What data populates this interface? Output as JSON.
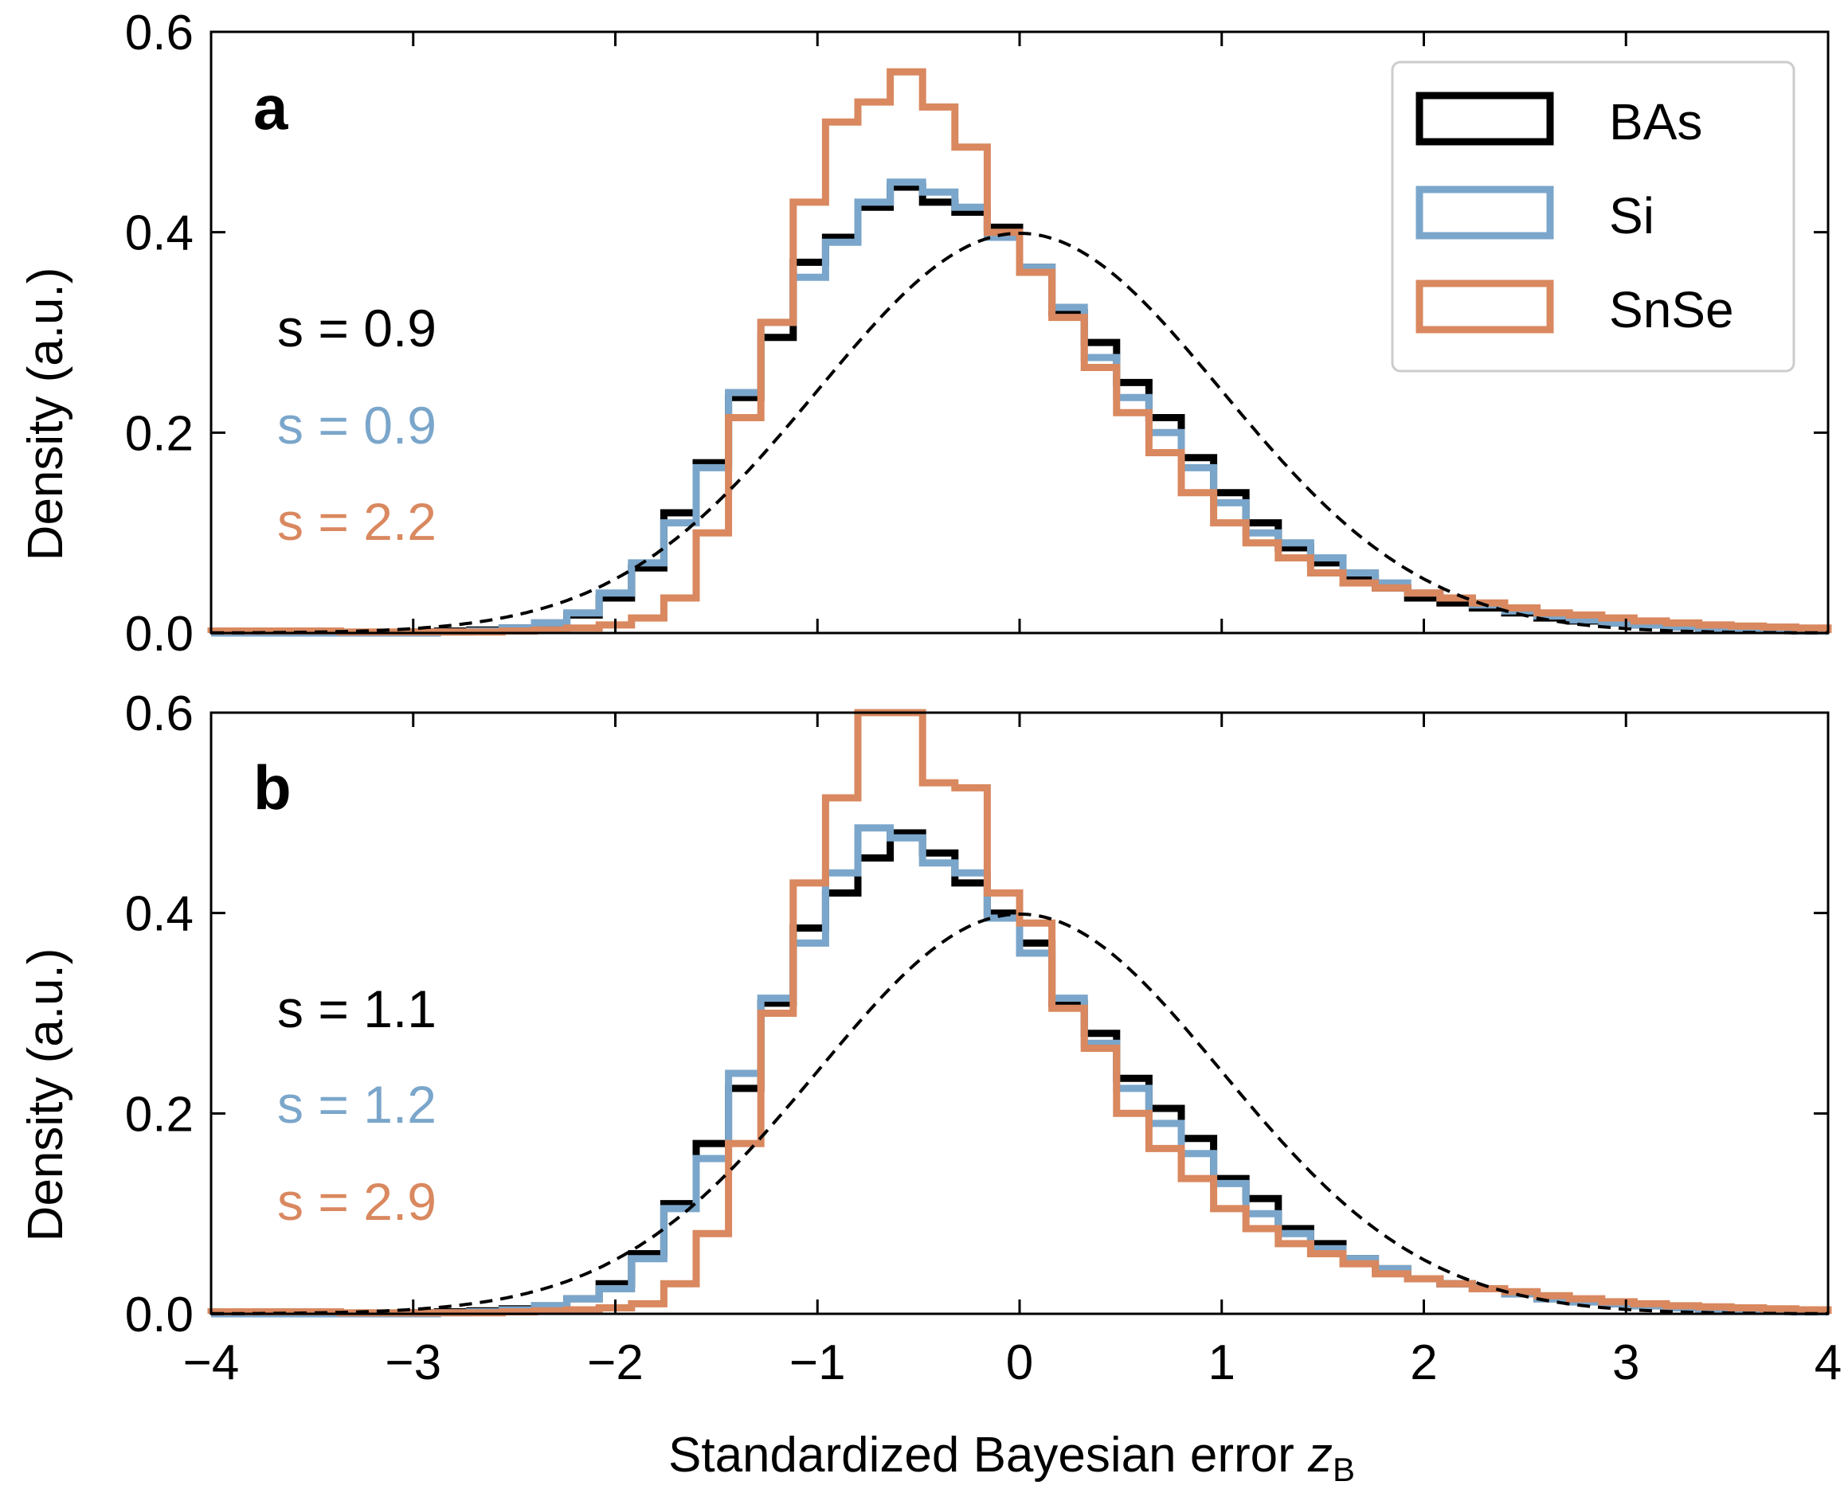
{
  "chart_data": [
    {
      "type": "histogram",
      "panel_label": "a",
      "ylabel": "Density (a.u.)",
      "xlabel": "Standardized Bayesian error z_B",
      "xlim": [
        -4,
        4
      ],
      "ylim": [
        0,
        0.6
      ],
      "xticks": [
        "−4",
        "−3",
        "−2",
        "−1",
        "0",
        "1",
        "2",
        "3",
        "4"
      ],
      "yticks": [
        "0.0",
        "0.2",
        "0.4",
        "0.6"
      ],
      "reference_curve": "standard normal (dashed)",
      "legend": {
        "location": "upper right",
        "entries": [
          "BAs",
          "Si",
          "SnSe"
        ]
      },
      "bin_edges": [
        -4.0,
        -3.84,
        -3.68,
        -3.52,
        -3.36,
        -3.2,
        -3.04,
        -2.88,
        -2.72,
        -2.56,
        -2.4,
        -2.24,
        -2.08,
        -1.92,
        -1.76,
        -1.6,
        -1.44,
        -1.28,
        -1.12,
        -0.96,
        -0.8,
        -0.64,
        -0.48,
        -0.32,
        -0.16,
        0.0,
        0.16,
        0.32,
        0.48,
        0.64,
        0.8,
        0.96,
        1.12,
        1.28,
        1.44,
        1.6,
        1.76,
        1.92,
        2.08,
        2.24,
        2.4,
        2.56,
        2.72,
        2.88,
        3.04,
        3.2,
        3.36,
        3.52,
        3.68,
        3.84,
        4.0
      ],
      "series": [
        {
          "name": "BAs",
          "color": "#000000",
          "annotation": "s = 0.9",
          "values": [
            0.0,
            0.0,
            0.0,
            0.0,
            0.0,
            0.0,
            0.001,
            0.002,
            0.003,
            0.005,
            0.01,
            0.018,
            0.035,
            0.065,
            0.12,
            0.17,
            0.235,
            0.295,
            0.37,
            0.395,
            0.425,
            0.445,
            0.43,
            0.42,
            0.405,
            0.365,
            0.32,
            0.29,
            0.25,
            0.215,
            0.175,
            0.14,
            0.11,
            0.085,
            0.07,
            0.055,
            0.045,
            0.035,
            0.03,
            0.025,
            0.02,
            0.015,
            0.012,
            0.01,
            0.008,
            0.006,
            0.005,
            0.004,
            0.003,
            0.002
          ]
        },
        {
          "name": "Si",
          "color": "#7ba6cb",
          "annotation": "s = 0.9",
          "values": [
            0.0,
            0.0,
            0.0,
            0.0,
            0.0,
            0.0,
            0.0,
            0.001,
            0.002,
            0.005,
            0.01,
            0.02,
            0.04,
            0.07,
            0.11,
            0.165,
            0.24,
            0.31,
            0.355,
            0.39,
            0.43,
            0.45,
            0.44,
            0.425,
            0.395,
            0.365,
            0.325,
            0.275,
            0.235,
            0.2,
            0.165,
            0.13,
            0.1,
            0.09,
            0.075,
            0.06,
            0.05,
            0.04,
            0.035,
            0.028,
            0.022,
            0.017,
            0.013,
            0.01,
            0.008,
            0.006,
            0.005,
            0.004,
            0.003,
            0.002
          ]
        },
        {
          "name": "SnSe",
          "color": "#d9885f",
          "annotation": "s = 2.2",
          "values": [
            0.002,
            0.002,
            0.002,
            0.002,
            0.001,
            0.001,
            0.001,
            0.001,
            0.001,
            0.002,
            0.003,
            0.005,
            0.008,
            0.015,
            0.035,
            0.1,
            0.215,
            0.31,
            0.43,
            0.51,
            0.53,
            0.56,
            0.525,
            0.485,
            0.4,
            0.36,
            0.315,
            0.265,
            0.22,
            0.18,
            0.14,
            0.11,
            0.09,
            0.075,
            0.06,
            0.05,
            0.045,
            0.04,
            0.035,
            0.03,
            0.025,
            0.02,
            0.018,
            0.015,
            0.012,
            0.01,
            0.008,
            0.007,
            0.006,
            0.005
          ]
        }
      ]
    },
    {
      "type": "histogram",
      "panel_label": "b",
      "ylabel": "Density (a.u.)",
      "xlabel": "Standardized Bayesian error z_B",
      "xlim": [
        -4,
        4
      ],
      "ylim": [
        0,
        0.6
      ],
      "xticks": [
        "−4",
        "−3",
        "−2",
        "−1",
        "0",
        "1",
        "2",
        "3",
        "4"
      ],
      "yticks": [
        "0.0",
        "0.2",
        "0.4",
        "0.6"
      ],
      "reference_curve": "standard normal (dashed)",
      "bin_edges": [
        -4.0,
        -3.84,
        -3.68,
        -3.52,
        -3.36,
        -3.2,
        -3.04,
        -2.88,
        -2.72,
        -2.56,
        -2.4,
        -2.24,
        -2.08,
        -1.92,
        -1.76,
        -1.6,
        -1.44,
        -1.28,
        -1.12,
        -0.96,
        -0.8,
        -0.64,
        -0.48,
        -0.32,
        -0.16,
        0.0,
        0.16,
        0.32,
        0.48,
        0.64,
        0.8,
        0.96,
        1.12,
        1.28,
        1.44,
        1.6,
        1.76,
        1.92,
        2.08,
        2.24,
        2.4,
        2.56,
        2.72,
        2.88,
        3.04,
        3.2,
        3.36,
        3.52,
        3.68,
        3.84,
        4.0
      ],
      "series": [
        {
          "name": "BAs",
          "color": "#000000",
          "annotation": "s = 1.1",
          "values": [
            0.0,
            0.0,
            0.0,
            0.0,
            0.0,
            0.0,
            0.001,
            0.002,
            0.003,
            0.005,
            0.008,
            0.015,
            0.03,
            0.06,
            0.11,
            0.17,
            0.225,
            0.31,
            0.385,
            0.42,
            0.455,
            0.48,
            0.46,
            0.43,
            0.4,
            0.37,
            0.31,
            0.28,
            0.235,
            0.205,
            0.175,
            0.135,
            0.115,
            0.085,
            0.07,
            0.055,
            0.045,
            0.035,
            0.03,
            0.025,
            0.02,
            0.015,
            0.012,
            0.01,
            0.008,
            0.006,
            0.005,
            0.004,
            0.003,
            0.002
          ]
        },
        {
          "name": "Si",
          "color": "#7ba6cb",
          "annotation": "s = 1.2",
          "values": [
            0.0,
            0.0,
            0.0,
            0.0,
            0.0,
            0.0,
            0.0,
            0.001,
            0.002,
            0.004,
            0.008,
            0.015,
            0.025,
            0.055,
            0.105,
            0.155,
            0.24,
            0.315,
            0.37,
            0.44,
            0.485,
            0.475,
            0.45,
            0.44,
            0.395,
            0.36,
            0.315,
            0.27,
            0.225,
            0.19,
            0.16,
            0.13,
            0.1,
            0.08,
            0.065,
            0.055,
            0.045,
            0.035,
            0.03,
            0.025,
            0.02,
            0.015,
            0.012,
            0.01,
            0.008,
            0.006,
            0.004,
            0.003,
            0.003,
            0.002
          ]
        },
        {
          "name": "SnSe",
          "color": "#d9885f",
          "annotation": "s = 2.9",
          "values": [
            0.002,
            0.002,
            0.002,
            0.002,
            0.001,
            0.001,
            0.001,
            0.001,
            0.001,
            0.002,
            0.003,
            0.004,
            0.006,
            0.01,
            0.03,
            0.08,
            0.17,
            0.3,
            0.43,
            0.515,
            0.6,
            0.6,
            0.53,
            0.525,
            0.42,
            0.39,
            0.305,
            0.265,
            0.2,
            0.165,
            0.135,
            0.105,
            0.085,
            0.07,
            0.06,
            0.05,
            0.04,
            0.035,
            0.03,
            0.025,
            0.022,
            0.018,
            0.015,
            0.012,
            0.01,
            0.008,
            0.007,
            0.006,
            0.005,
            0.004
          ]
        }
      ]
    }
  ]
}
